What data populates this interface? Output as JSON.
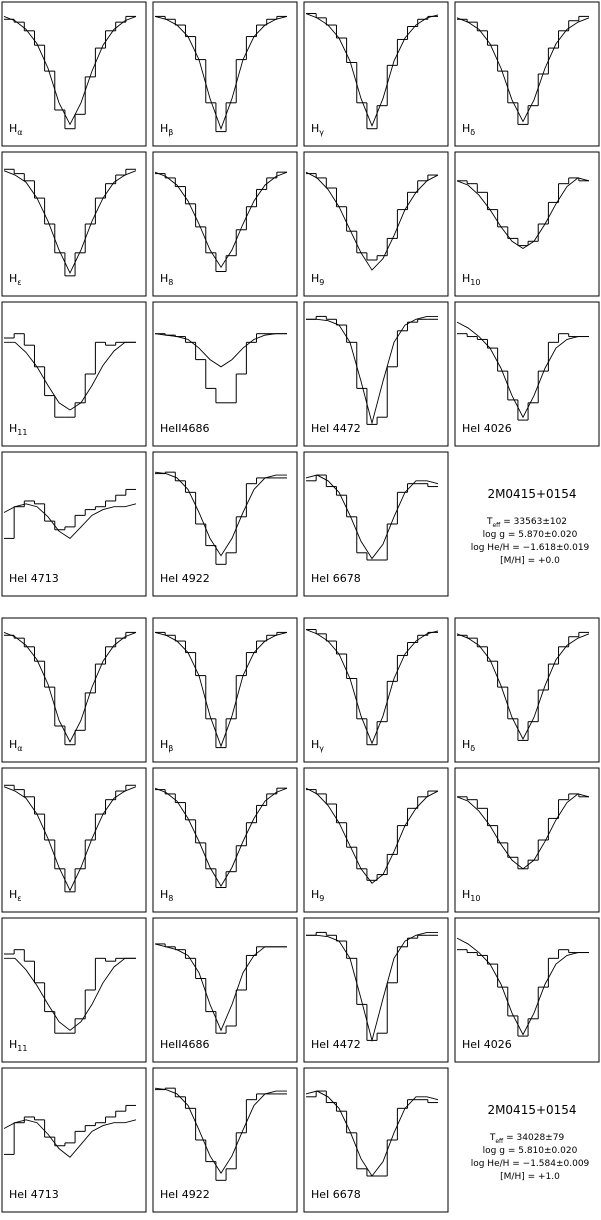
{
  "chart_data": [
    {
      "type": "spectral-fit",
      "ylim": [
        0,
        1
      ],
      "color": "#000000",
      "object": "2M0415+0154",
      "parameters": [
        {
          "label": "T",
          "sub": "eff",
          "text": "= 33563±102"
        },
        {
          "text": "log g = 5.870±0.020"
        },
        {
          "text": "log He/H = −1.618±0.019"
        },
        {
          "text": "[M/H] = +0.0"
        }
      ],
      "panels": [
        {
          "label": "H",
          "sub": "α",
          "obs": [
            0.88,
            0.86,
            0.8,
            0.7,
            0.52,
            0.25,
            0.12,
            0.22,
            0.48,
            0.68,
            0.8,
            0.86,
            0.9
          ],
          "model": [
            0.9,
            0.87,
            0.81,
            0.71,
            0.54,
            0.3,
            0.15,
            0.3,
            0.52,
            0.7,
            0.81,
            0.87,
            0.9
          ]
        },
        {
          "label": "H",
          "sub": "β",
          "obs": [
            0.9,
            0.88,
            0.84,
            0.76,
            0.6,
            0.3,
            0.1,
            0.3,
            0.6,
            0.76,
            0.84,
            0.88,
            0.9
          ],
          "model": [
            0.9,
            0.88,
            0.84,
            0.76,
            0.6,
            0.33,
            0.12,
            0.33,
            0.6,
            0.76,
            0.84,
            0.88,
            0.9
          ]
        },
        {
          "label": "H",
          "sub": "γ",
          "obs": [
            0.92,
            0.89,
            0.84,
            0.75,
            0.58,
            0.3,
            0.12,
            0.28,
            0.56,
            0.74,
            0.83,
            0.88,
            0.9
          ],
          "model": [
            0.92,
            0.89,
            0.84,
            0.75,
            0.59,
            0.33,
            0.14,
            0.33,
            0.59,
            0.75,
            0.84,
            0.89,
            0.91
          ]
        },
        {
          "label": "H",
          "sub": "δ",
          "obs": [
            0.88,
            0.86,
            0.8,
            0.7,
            0.52,
            0.3,
            0.15,
            0.28,
            0.5,
            0.68,
            0.8,
            0.87,
            0.9
          ],
          "model": [
            0.89,
            0.86,
            0.81,
            0.71,
            0.54,
            0.32,
            0.17,
            0.32,
            0.54,
            0.71,
            0.81,
            0.86,
            0.89
          ]
        },
        {
          "label": "H",
          "sub": "ε",
          "obs": [
            0.88,
            0.85,
            0.8,
            0.68,
            0.5,
            0.3,
            0.14,
            0.3,
            0.5,
            0.68,
            0.78,
            0.84,
            0.88
          ],
          "model": [
            0.87,
            0.84,
            0.79,
            0.68,
            0.52,
            0.32,
            0.16,
            0.32,
            0.52,
            0.68,
            0.79,
            0.84,
            0.87
          ]
        },
        {
          "label": "H",
          "sub": "8",
          "obs": [
            0.85,
            0.82,
            0.76,
            0.64,
            0.48,
            0.3,
            0.17,
            0.28,
            0.46,
            0.62,
            0.74,
            0.82,
            0.86
          ],
          "model": [
            0.86,
            0.83,
            0.77,
            0.66,
            0.5,
            0.32,
            0.2,
            0.32,
            0.5,
            0.66,
            0.77,
            0.83,
            0.86
          ]
        },
        {
          "label": "H",
          "sub": "9",
          "obs": [
            0.85,
            0.82,
            0.75,
            0.62,
            0.45,
            0.3,
            0.25,
            0.28,
            0.4,
            0.6,
            0.72,
            0.8,
            0.84
          ],
          "model": [
            0.86,
            0.82,
            0.74,
            0.62,
            0.46,
            0.3,
            0.18,
            0.26,
            0.42,
            0.6,
            0.72,
            0.8,
            0.84
          ]
        },
        {
          "label": "H",
          "sub": "10",
          "obs": [
            0.8,
            0.78,
            0.72,
            0.6,
            0.48,
            0.4,
            0.35,
            0.38,
            0.5,
            0.65,
            0.78,
            0.82,
            0.8
          ],
          "model": [
            0.8,
            0.77,
            0.7,
            0.6,
            0.48,
            0.38,
            0.33,
            0.38,
            0.5,
            0.64,
            0.76,
            0.82,
            0.8
          ]
        },
        {
          "label": "H",
          "sub": "11",
          "obs": [
            0.75,
            0.78,
            0.7,
            0.55,
            0.35,
            0.2,
            0.2,
            0.3,
            0.5,
            0.72,
            0.7,
            0.72,
            0.72
          ],
          "model": [
            0.72,
            0.72,
            0.65,
            0.55,
            0.42,
            0.3,
            0.25,
            0.3,
            0.42,
            0.56,
            0.66,
            0.72,
            0.72
          ]
        },
        {
          "label": "HeII4686",
          "obs": [
            0.78,
            0.77,
            0.76,
            0.72,
            0.6,
            0.4,
            0.3,
            0.3,
            0.5,
            0.72,
            0.78,
            0.78,
            0.78
          ],
          "model": [
            0.78,
            0.77,
            0.76,
            0.74,
            0.68,
            0.6,
            0.55,
            0.6,
            0.68,
            0.74,
            0.77,
            0.78,
            0.78
          ]
        },
        {
          "label": "HeI 4472",
          "obs": [
            0.88,
            0.9,
            0.88,
            0.84,
            0.72,
            0.4,
            0.15,
            0.2,
            0.55,
            0.8,
            0.86,
            0.88,
            0.88
          ],
          "model": [
            0.88,
            0.88,
            0.87,
            0.84,
            0.72,
            0.45,
            0.16,
            0.45,
            0.72,
            0.84,
            0.88,
            0.9,
            0.9
          ]
        },
        {
          "label": "HeI 4026",
          "obs": [
            0.78,
            0.76,
            0.74,
            0.68,
            0.52,
            0.32,
            0.18,
            0.3,
            0.52,
            0.72,
            0.78,
            0.76,
            0.76
          ],
          "model": [
            0.86,
            0.82,
            0.76,
            0.68,
            0.54,
            0.35,
            0.2,
            0.35,
            0.54,
            0.68,
            0.74,
            0.76,
            0.76
          ]
        },
        {
          "label": "HeI 4713",
          "obs": [
            0.4,
            0.62,
            0.66,
            0.64,
            0.52,
            0.46,
            0.48,
            0.56,
            0.6,
            0.62,
            0.66,
            0.7,
            0.74
          ],
          "model": [
            0.58,
            0.62,
            0.64,
            0.62,
            0.55,
            0.45,
            0.4,
            0.48,
            0.56,
            0.6,
            0.62,
            0.62,
            0.64
          ]
        },
        {
          "label": "HeI 4922",
          "obs": [
            0.85,
            0.86,
            0.8,
            0.72,
            0.5,
            0.35,
            0.22,
            0.3,
            0.55,
            0.78,
            0.82,
            0.82,
            0.82
          ],
          "model": [
            0.86,
            0.85,
            0.82,
            0.74,
            0.58,
            0.4,
            0.28,
            0.4,
            0.58,
            0.74,
            0.82,
            0.84,
            0.84
          ]
        },
        {
          "label": "HeI 6678",
          "obs": [
            0.8,
            0.84,
            0.76,
            0.7,
            0.55,
            0.3,
            0.25,
            0.25,
            0.5,
            0.72,
            0.78,
            0.78,
            0.76
          ],
          "model": [
            0.82,
            0.84,
            0.8,
            0.72,
            0.56,
            0.38,
            0.26,
            0.36,
            0.55,
            0.72,
            0.8,
            0.8,
            0.78
          ]
        }
      ]
    },
    {
      "type": "spectral-fit",
      "ylim": [
        0,
        1
      ],
      "color": "#000000",
      "object": "2M0415+0154",
      "parameters": [
        {
          "label": "T",
          "sub": "eff",
          "text": "= 34028±79"
        },
        {
          "text": "log g = 5.810±0.020"
        },
        {
          "text": "log He/H = −1.584±0.009"
        },
        {
          "text": "[M/H] = +1.0"
        }
      ],
      "panels": [
        {
          "label": "H",
          "sub": "α",
          "obs": [
            0.88,
            0.86,
            0.8,
            0.7,
            0.52,
            0.25,
            0.12,
            0.22,
            0.48,
            0.68,
            0.8,
            0.86,
            0.9
          ],
          "model": [
            0.9,
            0.87,
            0.81,
            0.71,
            0.54,
            0.29,
            0.14,
            0.29,
            0.52,
            0.7,
            0.81,
            0.87,
            0.9
          ]
        },
        {
          "label": "H",
          "sub": "β",
          "obs": [
            0.9,
            0.88,
            0.84,
            0.76,
            0.6,
            0.3,
            0.1,
            0.3,
            0.6,
            0.76,
            0.84,
            0.88,
            0.9
          ],
          "model": [
            0.9,
            0.88,
            0.84,
            0.76,
            0.6,
            0.32,
            0.11,
            0.32,
            0.6,
            0.76,
            0.84,
            0.88,
            0.9
          ]
        },
        {
          "label": "H",
          "sub": "γ",
          "obs": [
            0.92,
            0.89,
            0.84,
            0.75,
            0.58,
            0.3,
            0.12,
            0.28,
            0.56,
            0.74,
            0.83,
            0.88,
            0.9
          ],
          "model": [
            0.92,
            0.89,
            0.84,
            0.75,
            0.58,
            0.32,
            0.13,
            0.32,
            0.58,
            0.75,
            0.84,
            0.89,
            0.91
          ]
        },
        {
          "label": "H",
          "sub": "δ",
          "obs": [
            0.88,
            0.86,
            0.8,
            0.7,
            0.52,
            0.3,
            0.15,
            0.28,
            0.5,
            0.68,
            0.8,
            0.87,
            0.9
          ],
          "model": [
            0.89,
            0.86,
            0.81,
            0.71,
            0.53,
            0.31,
            0.16,
            0.31,
            0.53,
            0.71,
            0.81,
            0.86,
            0.89
          ]
        },
        {
          "label": "H",
          "sub": "ε",
          "obs": [
            0.88,
            0.85,
            0.8,
            0.68,
            0.5,
            0.3,
            0.14,
            0.3,
            0.5,
            0.68,
            0.78,
            0.84,
            0.88
          ],
          "model": [
            0.87,
            0.84,
            0.79,
            0.68,
            0.51,
            0.31,
            0.15,
            0.31,
            0.51,
            0.68,
            0.79,
            0.84,
            0.87
          ]
        },
        {
          "label": "H",
          "sub": "8",
          "obs": [
            0.85,
            0.82,
            0.76,
            0.64,
            0.48,
            0.3,
            0.17,
            0.28,
            0.46,
            0.62,
            0.74,
            0.82,
            0.86
          ],
          "model": [
            0.86,
            0.83,
            0.77,
            0.65,
            0.49,
            0.31,
            0.18,
            0.31,
            0.49,
            0.65,
            0.77,
            0.83,
            0.86
          ]
        },
        {
          "label": "H",
          "sub": "9",
          "obs": [
            0.85,
            0.82,
            0.75,
            0.62,
            0.45,
            0.3,
            0.22,
            0.26,
            0.4,
            0.6,
            0.72,
            0.8,
            0.84
          ],
          "model": [
            0.86,
            0.82,
            0.74,
            0.62,
            0.46,
            0.3,
            0.2,
            0.26,
            0.42,
            0.6,
            0.72,
            0.8,
            0.84
          ]
        },
        {
          "label": "H",
          "sub": "10",
          "obs": [
            0.8,
            0.78,
            0.72,
            0.6,
            0.48,
            0.38,
            0.3,
            0.36,
            0.5,
            0.65,
            0.78,
            0.82,
            0.8
          ],
          "model": [
            0.8,
            0.77,
            0.7,
            0.6,
            0.47,
            0.36,
            0.3,
            0.36,
            0.49,
            0.64,
            0.76,
            0.82,
            0.8
          ]
        },
        {
          "label": "H",
          "sub": "11",
          "obs": [
            0.75,
            0.78,
            0.7,
            0.55,
            0.35,
            0.2,
            0.2,
            0.3,
            0.5,
            0.72,
            0.7,
            0.72,
            0.72
          ],
          "model": [
            0.72,
            0.72,
            0.64,
            0.53,
            0.4,
            0.28,
            0.22,
            0.28,
            0.4,
            0.55,
            0.66,
            0.72,
            0.72
          ]
        },
        {
          "label": "HeII4686",
          "obs": [
            0.82,
            0.8,
            0.78,
            0.72,
            0.58,
            0.35,
            0.2,
            0.25,
            0.5,
            0.74,
            0.8,
            0.8,
            0.8
          ],
          "model": [
            0.82,
            0.8,
            0.78,
            0.74,
            0.62,
            0.4,
            0.22,
            0.4,
            0.62,
            0.74,
            0.8,
            0.8,
            0.8
          ]
        },
        {
          "label": "HeI 4472",
          "obs": [
            0.88,
            0.9,
            0.88,
            0.84,
            0.72,
            0.4,
            0.15,
            0.2,
            0.55,
            0.8,
            0.86,
            0.88,
            0.88
          ],
          "model": [
            0.88,
            0.88,
            0.87,
            0.84,
            0.72,
            0.44,
            0.15,
            0.44,
            0.72,
            0.84,
            0.88,
            0.9,
            0.9
          ]
        },
        {
          "label": "HeI 4026",
          "obs": [
            0.78,
            0.76,
            0.74,
            0.68,
            0.52,
            0.32,
            0.18,
            0.3,
            0.52,
            0.72,
            0.78,
            0.76,
            0.76
          ],
          "model": [
            0.86,
            0.82,
            0.76,
            0.68,
            0.54,
            0.34,
            0.19,
            0.34,
            0.54,
            0.68,
            0.74,
            0.76,
            0.76
          ]
        },
        {
          "label": "HeI 4713",
          "obs": [
            0.4,
            0.62,
            0.66,
            0.64,
            0.52,
            0.46,
            0.48,
            0.56,
            0.6,
            0.62,
            0.66,
            0.7,
            0.74
          ],
          "model": [
            0.58,
            0.62,
            0.64,
            0.62,
            0.54,
            0.44,
            0.38,
            0.47,
            0.56,
            0.6,
            0.62,
            0.62,
            0.64
          ]
        },
        {
          "label": "HeI 4922",
          "obs": [
            0.85,
            0.86,
            0.8,
            0.72,
            0.5,
            0.35,
            0.22,
            0.3,
            0.55,
            0.78,
            0.82,
            0.82,
            0.82
          ],
          "model": [
            0.86,
            0.85,
            0.82,
            0.74,
            0.57,
            0.39,
            0.27,
            0.39,
            0.57,
            0.74,
            0.82,
            0.84,
            0.84
          ]
        },
        {
          "label": "HeI 6678",
          "obs": [
            0.8,
            0.84,
            0.76,
            0.7,
            0.55,
            0.3,
            0.25,
            0.25,
            0.5,
            0.72,
            0.78,
            0.78,
            0.76
          ],
          "model": [
            0.82,
            0.84,
            0.8,
            0.72,
            0.56,
            0.37,
            0.25,
            0.35,
            0.55,
            0.72,
            0.8,
            0.8,
            0.78
          ]
        }
      ]
    }
  ]
}
